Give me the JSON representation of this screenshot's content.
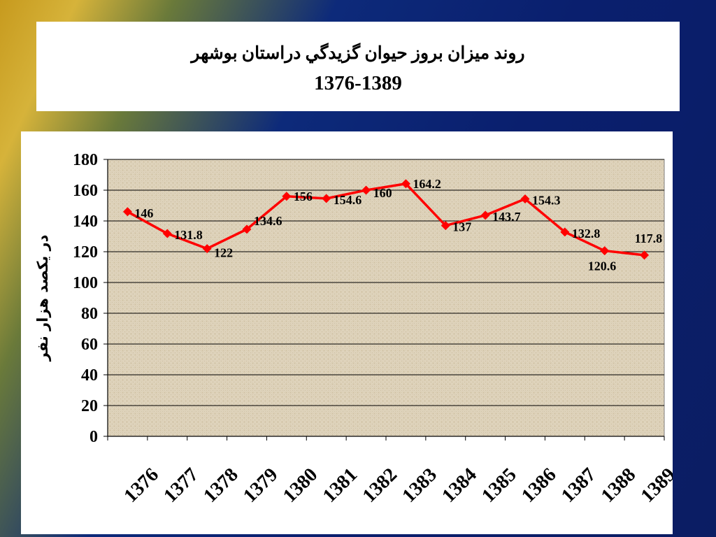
{
  "slide": {
    "title_line1": "روند ميزان بروز حيوان گزيدگي دراستان بوشهر",
    "title_line2": "1376-1389"
  },
  "colors": {
    "series": "#ff0000",
    "plot_bg": "#e6dcc8",
    "gridline": "#000000"
  },
  "chart_data": {
    "type": "line",
    "title": "",
    "xlabel": "",
    "ylabel": "در يکصد هزار نفر",
    "categories": [
      "1376",
      "1377",
      "1378",
      "1379",
      "1380",
      "1381",
      "1382",
      "1383",
      "1384",
      "1385",
      "1386",
      "1387",
      "1388",
      "1389"
    ],
    "series": [
      {
        "values": [
          146,
          131.8,
          122,
          134.6,
          156,
          154.6,
          160,
          164.2,
          137,
          143.7,
          154.3,
          132.8,
          120.6,
          117.8
        ],
        "labels": [
          "146",
          "131.8",
          "122",
          "134.6",
          "156",
          "154.6",
          "160",
          "164.2",
          "137",
          "143.7",
          "154.3",
          "132.8",
          "120.6",
          "117.8"
        ]
      }
    ],
    "ylim": [
      0,
      180
    ],
    "yticks": [
      "0",
      "20",
      "40",
      "60",
      "80",
      "100",
      "120",
      "140",
      "160",
      "180"
    ],
    "grid": true,
    "legend": "none"
  }
}
